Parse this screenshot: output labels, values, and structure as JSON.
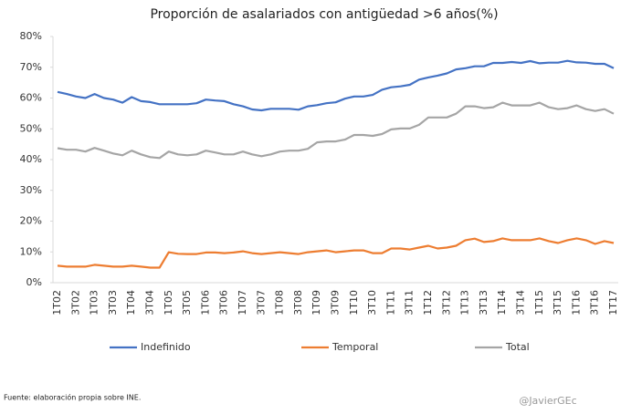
{
  "chart_data": {
    "type": "line",
    "title": "Proporción de asalariados con antigüedad >6 años(%)",
    "categories": [
      "1T02",
      null,
      "3T02",
      null,
      "1T03",
      null,
      "3T03",
      null,
      "1T04",
      null,
      "3T04",
      null,
      "1T05",
      null,
      "3T05",
      null,
      "1T06",
      null,
      "3T06",
      null,
      "1T07",
      null,
      "3T07",
      null,
      "1T08",
      null,
      "3T08",
      null,
      "1T09",
      null,
      "3T09",
      null,
      "1T10",
      null,
      "3T10",
      null,
      "1T11",
      null,
      "3T11",
      null,
      "1T12",
      null,
      "3T12",
      null,
      "1T13",
      null,
      "3T13",
      null,
      "1T14",
      null,
      "3T14",
      null,
      "1T15",
      null,
      "3T15",
      null,
      "1T16",
      null,
      "3T16",
      null,
      "1T17"
    ],
    "series": [
      {
        "name": "Indefinido",
        "color": "#4472c4",
        "values": [
          62,
          61.3,
          60.5,
          60,
          61.3,
          60,
          59.5,
          58.5,
          60.3,
          59,
          58.7,
          58,
          58,
          58,
          58,
          58.3,
          59.5,
          59.2,
          59,
          58,
          57.3,
          56.3,
          56,
          56.5,
          56.5,
          56.5,
          56.2,
          57.3,
          57.7,
          58.3,
          58.6,
          59.8,
          60.5,
          60.5,
          61,
          62.7,
          63.5,
          63.8,
          64.3,
          66,
          66.7,
          67.3,
          68,
          69.3,
          69.7,
          70.3,
          70.3,
          71.4,
          71.4,
          71.7,
          71.4,
          72,
          71.3,
          71.5,
          71.5,
          72.1,
          71.6,
          71.5,
          71.1,
          71.1,
          69.7
        ]
      },
      {
        "name": "Temporal",
        "color": "#ed7d31",
        "values": [
          5.5,
          5.2,
          5.2,
          5.2,
          5.8,
          5.5,
          5.2,
          5.2,
          5.5,
          5.2,
          4.9,
          4.9,
          9.9,
          9.4,
          9.3,
          9.3,
          9.8,
          9.8,
          9.6,
          9.8,
          10.2,
          9.6,
          9.3,
          9.6,
          9.9,
          9.6,
          9.3,
          9.9,
          10.2,
          10.5,
          9.9,
          10.2,
          10.5,
          10.5,
          9.6,
          9.6,
          11.1,
          11.1,
          10.8,
          11.4,
          12,
          11.1,
          11.4,
          12,
          13.8,
          14.3,
          13.2,
          13.5,
          14.4,
          13.8,
          13.8,
          13.8,
          14.4,
          13.5,
          12.9,
          13.8,
          14.4,
          13.8,
          12.6,
          13.5,
          12.9
        ]
      },
      {
        "name": "Total",
        "color": "#a5a5a5",
        "values": [
          43.7,
          43.2,
          43.2,
          42.6,
          43.8,
          42.9,
          42,
          41.4,
          42.9,
          41.7,
          40.8,
          40.5,
          42.6,
          41.7,
          41.4,
          41.7,
          42.9,
          42.3,
          41.7,
          41.7,
          42.6,
          41.7,
          41.1,
          41.7,
          42.6,
          42.9,
          42.9,
          43.5,
          45.6,
          45.9,
          45.9,
          46.5,
          48,
          48,
          47.7,
          48.3,
          49.8,
          50.1,
          50.1,
          51.3,
          53.7,
          53.7,
          53.7,
          54.9,
          57.3,
          57.3,
          56.7,
          57,
          58.5,
          57.6,
          57.6,
          57.6,
          58.5,
          57,
          56.4,
          56.7,
          57.6,
          56.4,
          55.8,
          56.4,
          54.9
        ]
      }
    ],
    "ylim": [
      0,
      80
    ],
    "yticks": [
      {
        "value": 0,
        "label": "0%"
      },
      {
        "value": 10,
        "label": "10%"
      },
      {
        "value": 20,
        "label": "20%"
      },
      {
        "value": 30,
        "label": "30%"
      },
      {
        "value": 40,
        "label": "40%"
      },
      {
        "value": 50,
        "label": "50%"
      },
      {
        "value": 60,
        "label": "60%"
      },
      {
        "value": 70,
        "label": "70%"
      },
      {
        "value": 80,
        "label": "80%"
      }
    ],
    "grid": false,
    "legend": "bottom",
    "source": "Fuente: elaboración propia sobre INE.",
    "watermark": "@JavierGEc"
  }
}
